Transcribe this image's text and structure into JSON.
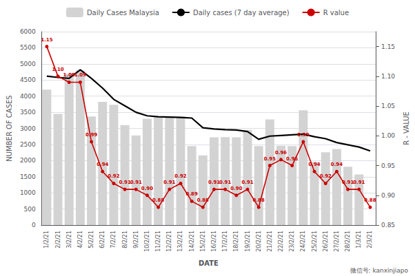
{
  "chart_data": {
    "type": "bar",
    "x_label": "DATE",
    "y_label": "NUMBER OF CASES",
    "y2_label": "R - VALUE",
    "categories": [
      "1/2/21",
      "2/2/21",
      "3/2/21",
      "4/2/21",
      "5/2/21",
      "6/2/21",
      "7/2/21",
      "8/2/21",
      "9/2/21",
      "10/2/21",
      "11/2/21",
      "12/2/21",
      "13/2/21",
      "14/2/21",
      "15/2/21",
      "16/2/21",
      "17/2/21",
      "18/2/21",
      "19/2/21",
      "20/2/21",
      "21/2/21",
      "22/2/21",
      "23/2/21",
      "24/2/21",
      "25/2/21",
      "26/2/21",
      "27/2/21",
      "28/2/21",
      "1/3/21",
      "2/3/21"
    ],
    "series": [
      {
        "name": "Daily Cases Malaysia",
        "type": "bar",
        "color": "#d3d3d3",
        "values": [
          4200,
          3450,
          4700,
          4800,
          3370,
          3820,
          3730,
          3100,
          2780,
          3300,
          3350,
          3350,
          3370,
          2450,
          2160,
          2720,
          2730,
          2720,
          2950,
          2450,
          3280,
          2460,
          2450,
          3560,
          1960,
          2260,
          2360,
          1810,
          1570,
          0
        ]
      },
      {
        "name": "Daily cases (7 day average)",
        "type": "line",
        "color": "#000000",
        "values": [
          4620,
          4580,
          4550,
          4820,
          4550,
          4250,
          3900,
          3700,
          3500,
          3390,
          3360,
          3350,
          3340,
          3320,
          3020,
          2980,
          2960,
          2950,
          2900,
          2660,
          2760,
          2780,
          2800,
          2820,
          2740,
          2680,
          2560,
          2490,
          2420,
          2300
        ]
      },
      {
        "name": "R value",
        "type": "line",
        "axis": "y2",
        "color": "#cc0000",
        "marker": "circle",
        "data_labels": true,
        "values": [
          1.15,
          1.1,
          1.09,
          1.09,
          0.99,
          0.94,
          0.92,
          0.91,
          0.91,
          0.9,
          0.88,
          0.91,
          0.92,
          0.89,
          0.88,
          0.91,
          0.91,
          0.9,
          0.91,
          0.88,
          0.95,
          0.96,
          0.95,
          0.99,
          0.94,
          0.92,
          0.94,
          0.91,
          0.91,
          0.88
        ],
        "value_labels": [
          "1.15",
          "1.10",
          "1.09",
          "1.09",
          "0.99",
          "0.94",
          "0.92",
          "0.91",
          "0.91",
          "0.90",
          "0.88",
          "0.91",
          "0.92",
          "0.89",
          "0.88",
          "0.91",
          "0.91",
          "0.90",
          "0.91",
          "0.88",
          "0.95",
          "0.96",
          "0.95",
          "0.99",
          "0.94",
          "0.92",
          "0.94",
          "0.91",
          "0.91",
          "0.88"
        ]
      }
    ],
    "ylim": [
      0,
      6000
    ],
    "yticks": [
      0,
      500,
      1000,
      1500,
      2000,
      2500,
      3000,
      3500,
      4000,
      4500,
      5000,
      5500,
      6000
    ],
    "y2lim": [
      0.85,
      1.175
    ],
    "y2ticks": [
      0.85,
      {
        "value": 0.9,
        "label": "0.90"
      },
      0.95,
      {
        "value": 1.0,
        "label": "1.00"
      },
      1.05,
      {
        "value": 1.1,
        "label": "1.10"
      },
      1.15
    ],
    "grid": true,
    "legend": "top",
    "annotations": [
      "微信号: kanxinjiapo"
    ]
  }
}
